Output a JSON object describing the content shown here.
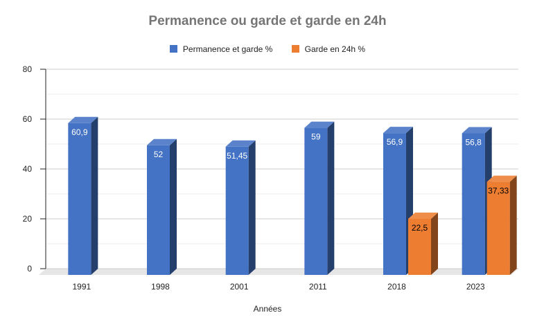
{
  "chart_data": {
    "type": "bar",
    "title": "Permanence ou garde et garde en 24h",
    "xlabel": "Années",
    "ylabel": "",
    "ylim": [
      0,
      80
    ],
    "yticks": [
      0,
      20,
      40,
      60,
      80
    ],
    "categories": [
      "1991",
      "1998",
      "2001",
      "2011",
      "2018",
      "2023"
    ],
    "series": [
      {
        "name": "Permanence et garde %",
        "values": [
          60.9,
          52,
          51.45,
          59,
          56.9,
          56.8
        ],
        "labels": [
          "60,9",
          "52",
          "51,45",
          "59",
          "56,9",
          "56,8"
        ],
        "color": "#4472c4",
        "label_color": "#ffffff"
      },
      {
        "name": "Garde en 24h %",
        "values": [
          null,
          null,
          null,
          null,
          22.5,
          37.33
        ],
        "labels": [
          "",
          "",
          "",
          "",
          "22,5",
          "37,33"
        ],
        "color": "#ed7d31",
        "label_color": "#000000"
      }
    ],
    "grid": true,
    "legend_position": "top",
    "style": "3d-bar"
  }
}
